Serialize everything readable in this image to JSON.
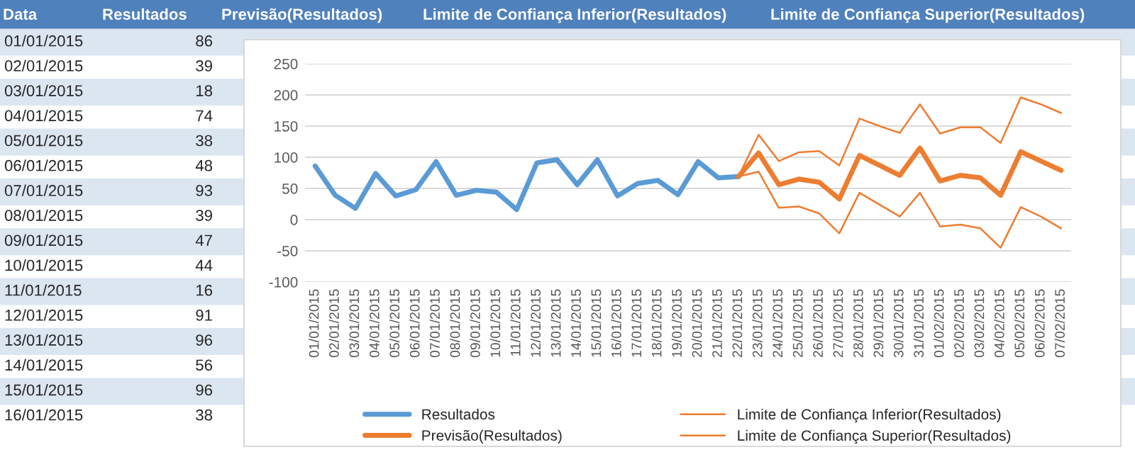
{
  "chart_data": {
    "type": "line",
    "categories": [
      "01/01/2015",
      "02/01/2015",
      "03/01/2015",
      "04/01/2015",
      "05/01/2015",
      "06/01/2015",
      "07/01/2015",
      "08/01/2015",
      "09/01/2015",
      "10/01/2015",
      "11/01/2015",
      "12/01/2015",
      "13/01/2015",
      "14/01/2015",
      "15/01/2015",
      "16/01/2015",
      "17/01/2015",
      "18/01/2015",
      "19/01/2015",
      "20/01/2015",
      "21/01/2015",
      "22/01/2015",
      "23/01/2015",
      "24/01/2015",
      "25/01/2015",
      "26/01/2015",
      "27/01/2015",
      "28/01/2015",
      "29/01/2015",
      "30/01/2015",
      "31/01/2015",
      "01/02/2015",
      "02/02/2015",
      "03/02/2015",
      "04/02/2015",
      "05/02/2015",
      "06/02/2015",
      "07/02/2015"
    ],
    "series": [
      {
        "name": "Resultados",
        "color": "#5b9bd5",
        "values": [
          86,
          39,
          18,
          74,
          38,
          48,
          93,
          39,
          47,
          44,
          16,
          91,
          96,
          56,
          96,
          38,
          58,
          63,
          40,
          93,
          67,
          69,
          null,
          null,
          null,
          null,
          null,
          null,
          null,
          null,
          null,
          null,
          null,
          null,
          null,
          null,
          null,
          null
        ]
      },
      {
        "name": "Previsão(Resultados)",
        "color": "#ed7d31",
        "values": [
          null,
          null,
          null,
          null,
          null,
          null,
          null,
          null,
          null,
          null,
          null,
          null,
          null,
          null,
          null,
          null,
          null,
          null,
          null,
          null,
          null,
          69,
          107,
          56,
          65,
          60,
          33,
          103,
          87,
          71,
          115,
          62,
          71,
          67,
          39,
          109,
          94,
          79
        ]
      },
      {
        "name": "Limite de Confiança Inferior(Resultados)",
        "color": "#ed7d31",
        "values": [
          null,
          null,
          null,
          null,
          null,
          null,
          null,
          null,
          null,
          null,
          null,
          null,
          null,
          null,
          null,
          null,
          null,
          null,
          null,
          null,
          null,
          69,
          77,
          19,
          21,
          10,
          -22,
          43,
          24,
          5,
          43,
          -11,
          -8,
          -14,
          -45,
          20,
          5,
          -14
        ]
      },
      {
        "name": "Limite de Confiança Superior(Resultados)",
        "color": "#ed7d31",
        "values": [
          null,
          null,
          null,
          null,
          null,
          null,
          null,
          null,
          null,
          null,
          null,
          null,
          null,
          null,
          null,
          null,
          null,
          null,
          null,
          null,
          null,
          69,
          136,
          94,
          108,
          110,
          87,
          162,
          150,
          139,
          185,
          138,
          148,
          148,
          123,
          196,
          185,
          171
        ]
      }
    ],
    "ylim": [
      -100,
      250
    ],
    "yticks": [
      -100,
      -50,
      0,
      50,
      100,
      150,
      200,
      250
    ],
    "grid": "y",
    "legend": "bottom",
    "marker": "none",
    "line_style": "solid",
    "annotations": [
      "Data",
      "Resultados",
      "Previsão(Resultados)",
      "Limite de Confiança Inferior(Resultados)",
      "Limite de Confiança Superior(Resultados)",
      "01/01/2015",
      "86",
      "02/01/2015",
      "39",
      "03/01/2015",
      "18",
      "04/01/2015",
      "74",
      "05/01/2015",
      "38",
      "06/01/2015",
      "48",
      "07/01/2015",
      "93",
      "08/01/2015",
      "39",
      "09/01/2015",
      "47",
      "10/01/2015",
      "44",
      "11/01/2015",
      "16",
      "12/01/2015",
      "91",
      "13/01/2015",
      "96",
      "14/01/2015",
      "56",
      "15/01/2015",
      "96",
      "16/01/2015",
      "38"
    ]
  }
}
